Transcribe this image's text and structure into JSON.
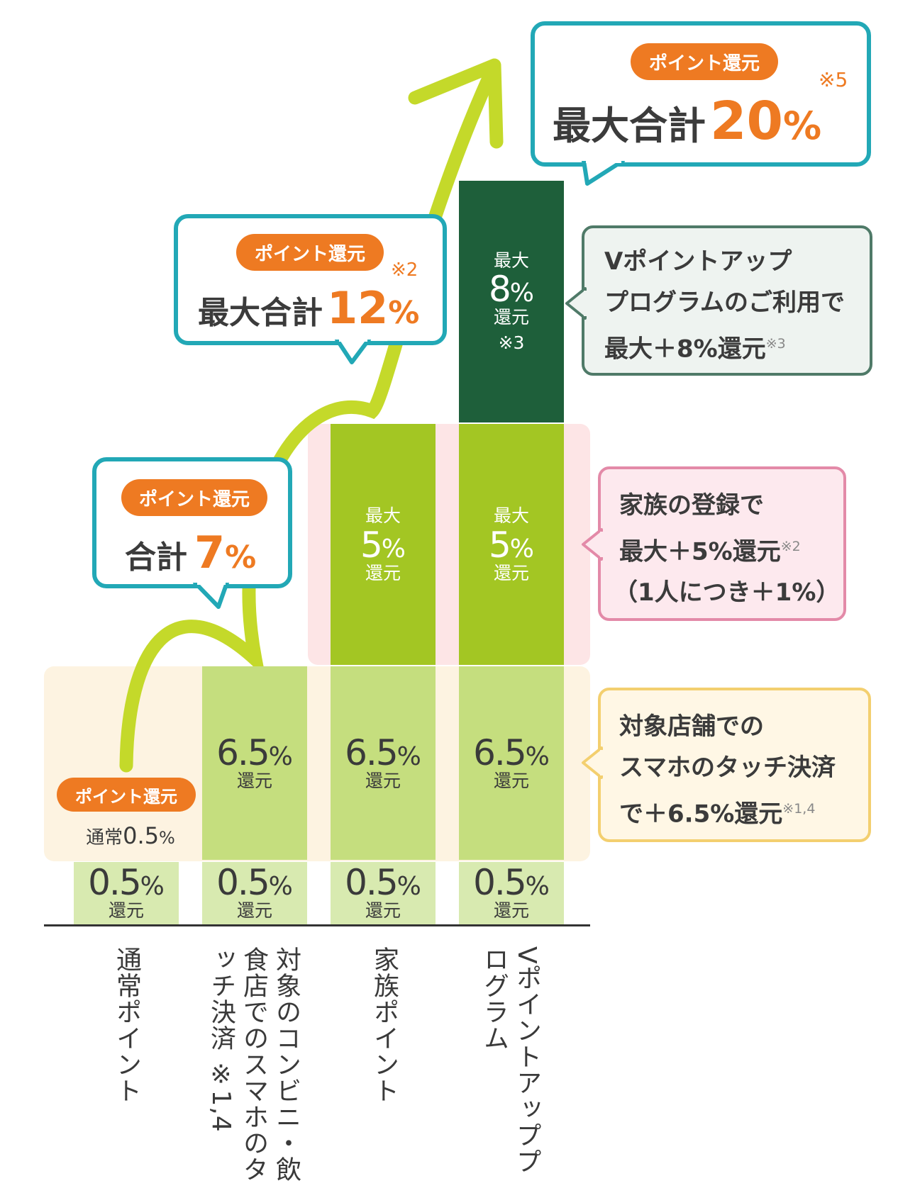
{
  "chart_data": {
    "type": "bar",
    "stacked": true,
    "categories": [
      "通常ポイント",
      "対象のコンビニ・飲食店でのスマホのタッチ決済 ※1,4",
      "家族ポイント",
      "Vポイントアッププログラム"
    ],
    "series": [
      {
        "name": "",
        "values": [
          0.5,
          0.5,
          0.5,
          0.5
        ]
      },
      {
        "name": "",
        "values": [
          0,
          6.5,
          6.5,
          6.5
        ]
      },
      {
        "name": "",
        "values": [
          0,
          0,
          5,
          5
        ]
      },
      {
        "name": "",
        "values": [
          0,
          0,
          0,
          8
        ]
      }
    ],
    "totals": [
      0.5,
      7,
      12,
      20
    ]
  },
  "labels": {
    "unit": "還元",
    "max": "最大",
    "pct": "%",
    "base": "0.5",
    "touch": "6.5",
    "family": "5",
    "vup": "8",
    "vup_note": "※3",
    "normal_prefix": "通常",
    "normal_value": "0.5",
    "pill": "ポイント還元"
  },
  "callouts": {
    "c1": {
      "prefix": "合計",
      "value": "7",
      "pct": "%"
    },
    "c2": {
      "prefix": "最大合計",
      "value": "12",
      "pct": "%",
      "note": "※2"
    },
    "c3": {
      "prefix": "最大合計",
      "value": "20",
      "pct": "%",
      "note": "※5"
    }
  },
  "side_notes": {
    "vup": {
      "line1": "Vポイントアップ",
      "line2": "プログラムのご利用で",
      "line3": "最大＋8%還元",
      "sup": "※3"
    },
    "family": {
      "line1": "家族の登録で",
      "line2": "最大＋5%還元",
      "sup": "※2",
      "line3": "（1人につき＋1%）"
    },
    "touch": {
      "line1": "対象店舗での",
      "line2": "スマホのタッチ決済",
      "line3": "で＋6.5%還元",
      "sup": "※1,4"
    }
  },
  "colors": {
    "base": "#d8eab0",
    "touch": "#c5de7e",
    "family": "#a3c623",
    "vup": "#1e5f3a",
    "arrow": "#c4d92a",
    "callout_border": "#22a8b6",
    "orange": "#ee7a22"
  }
}
